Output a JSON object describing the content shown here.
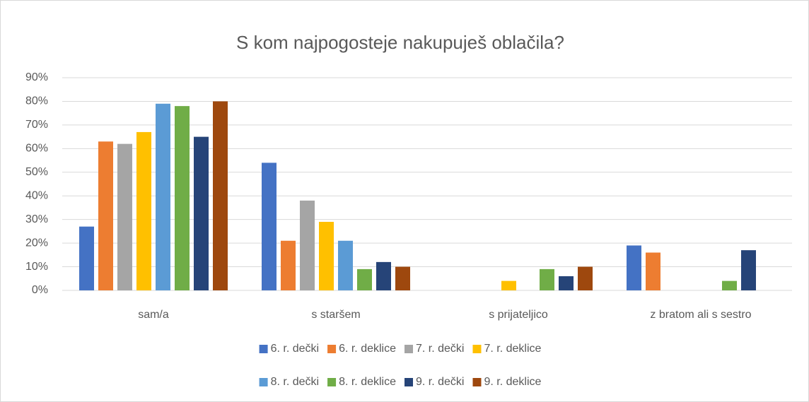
{
  "chart_data": {
    "type": "bar",
    "title": "S kom najpogosteje nakupuješ oblačila?",
    "categories": [
      "sam/a",
      "s staršem",
      "s prijateljico",
      "z bratom ali s sestro"
    ],
    "series": [
      {
        "name": "6. r. dečki",
        "color": "#4472c4",
        "values": [
          27,
          54,
          0,
          19
        ]
      },
      {
        "name": "6. r. deklice",
        "color": "#ed7d31",
        "values": [
          63,
          21,
          0,
          16
        ]
      },
      {
        "name": "7. r. dečki",
        "color": "#a5a5a5",
        "values": [
          62,
          38,
          0,
          0
        ]
      },
      {
        "name": "7. r. deklice",
        "color": "#ffc000",
        "values": [
          67,
          29,
          4,
          0
        ]
      },
      {
        "name": "8. r. dečki",
        "color": "#5b9bd5",
        "values": [
          79,
          21,
          0,
          0
        ]
      },
      {
        "name": "8. r. deklice",
        "color": "#70ad47",
        "values": [
          78,
          9,
          9,
          4
        ]
      },
      {
        "name": "9. r. dečki",
        "color": "#264478",
        "values": [
          65,
          12,
          6,
          17
        ]
      },
      {
        "name": "9. r. deklice",
        "color": "#9e480e",
        "values": [
          80,
          10,
          10,
          0
        ]
      }
    ],
    "ylim": [
      0,
      90
    ],
    "yticks": [
      {
        "value": 0,
        "label": "0%"
      },
      {
        "value": 10,
        "label": "10%"
      },
      {
        "value": 20,
        "label": "20%"
      },
      {
        "value": 30,
        "label": "30%"
      },
      {
        "value": 40,
        "label": "40%"
      },
      {
        "value": 50,
        "label": "50%"
      },
      {
        "value": 60,
        "label": "60%"
      },
      {
        "value": 70,
        "label": "70%"
      },
      {
        "value": 80,
        "label": "80%"
      },
      {
        "value": 90,
        "label": "90%"
      }
    ],
    "grid": true,
    "legend": "bottom"
  }
}
